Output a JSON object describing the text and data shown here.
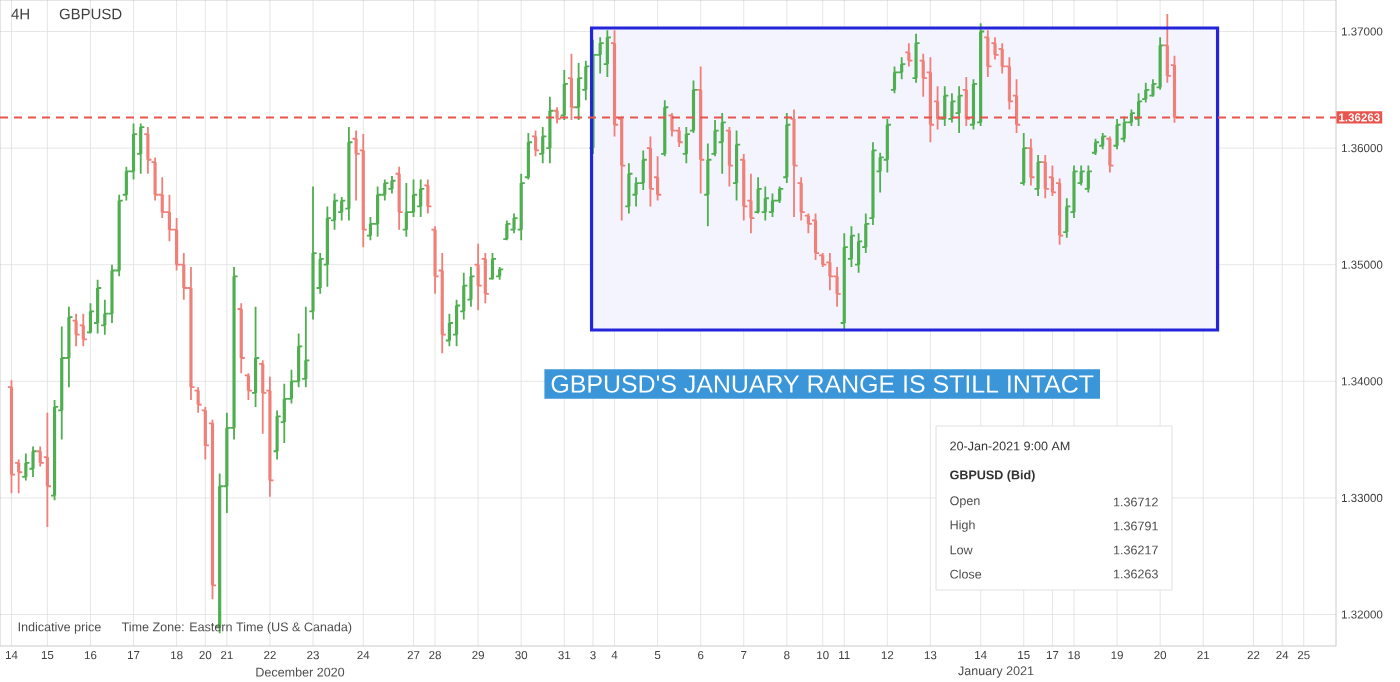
{
  "chart_data": {
    "type": "candlestick",
    "title": "GBPUSD",
    "subtitle": "4H",
    "categories": [
      "14",
      null,
      null,
      null,
      null,
      "15",
      null,
      null,
      null,
      null,
      null,
      "16",
      null,
      null,
      null,
      null,
      null,
      "17",
      null,
      null,
      null,
      null,
      null,
      "18",
      null,
      null,
      null,
      "20",
      null,
      null,
      "21",
      null,
      null,
      null,
      null,
      null,
      "22",
      null,
      null,
      null,
      null,
      null,
      "23",
      null,
      null,
      null,
      null,
      null,
      null,
      "24",
      null,
      null,
      null,
      null,
      null,
      null,
      "27",
      null,
      null,
      "28",
      null,
      null,
      null,
      null,
      null,
      "29",
      null,
      null,
      null,
      null,
      null,
      "30",
      null,
      null,
      null,
      null,
      null,
      "31",
      null,
      null,
      null,
      "3",
      null,
      null,
      "4",
      null,
      null,
      null,
      null,
      null,
      "5",
      null,
      null,
      null,
      null,
      null,
      "6",
      null,
      null,
      null,
      null,
      null,
      "7",
      null,
      null,
      null,
      null,
      null,
      "8",
      null,
      null,
      null,
      null,
      "10",
      null,
      null,
      "11",
      null,
      null,
      null,
      null,
      null,
      "12",
      null,
      null,
      null,
      null,
      null,
      "13",
      null,
      null,
      null,
      null,
      null,
      null,
      "14",
      null,
      null,
      null,
      null,
      null,
      "15",
      null,
      null,
      null,
      "17",
      null,
      null,
      "18",
      null,
      null,
      null,
      null,
      null,
      "19",
      null,
      null,
      null,
      null,
      null,
      "20",
      null,
      null,
      null,
      null,
      null,
      "21",
      null,
      null,
      null,
      null,
      null,
      null,
      "22",
      null,
      null,
      null,
      "24",
      null,
      null,
      "25",
      null,
      null,
      null,
      null
    ],
    "ohlc": [
      [
        1.3395,
        1.3401,
        1.3304,
        1.332
      ],
      [
        1.333,
        1.3333,
        1.3304,
        1.3322
      ],
      [
        1.3318,
        1.3338,
        1.3315,
        1.333
      ],
      [
        1.3325,
        1.3344,
        1.3318,
        1.334
      ],
      [
        1.334,
        1.3344,
        1.3327,
        1.333
      ],
      [
        1.3335,
        1.3373,
        1.3275,
        1.331
      ],
      [
        1.3302,
        1.3384,
        1.3298,
        1.3378
      ],
      [
        1.3375,
        1.3447,
        1.335,
        1.342
      ],
      [
        1.342,
        1.3464,
        1.3395,
        1.3455
      ],
      [
        1.3452,
        1.3458,
        1.343,
        1.344
      ],
      [
        1.3448,
        1.3458,
        1.343,
        1.3436
      ],
      [
        1.3442,
        1.3467,
        1.3441,
        1.346
      ],
      [
        1.345,
        1.3487,
        1.3441,
        1.348
      ],
      [
        1.3448,
        1.347,
        1.344,
        1.3458
      ],
      [
        1.3458,
        1.35,
        1.345,
        1.3495
      ],
      [
        1.3495,
        1.356,
        1.349,
        1.3555
      ],
      [
        1.356,
        1.3584,
        1.3555,
        1.358
      ],
      [
        1.358,
        1.3621,
        1.3573,
        1.3612
      ],
      [
        1.3595,
        1.3621,
        1.3578,
        1.3618
      ],
      [
        1.3612,
        1.3618,
        1.3578,
        1.359
      ],
      [
        1.3588,
        1.3592,
        1.3555,
        1.356
      ],
      [
        1.356,
        1.3575,
        1.354,
        1.3545
      ],
      [
        1.3545,
        1.356,
        1.352,
        1.353
      ],
      [
        1.353,
        1.354,
        1.3495,
        1.35
      ],
      [
        1.35,
        1.351,
        1.347,
        1.348
      ],
      [
        1.348,
        1.3498,
        1.3384,
        1.3395
      ],
      [
        1.3392,
        1.3395,
        1.3373,
        1.338
      ],
      [
        1.3375,
        1.3378,
        1.3333,
        1.3345
      ],
      [
        1.3364,
        1.3367,
        1.3213,
        1.3225
      ],
      [
        1.319,
        1.3321,
        1.3184,
        1.331
      ],
      [
        1.331,
        1.3373,
        1.3287,
        1.336
      ],
      [
        1.336,
        1.3498,
        1.335,
        1.349
      ],
      [
        1.3462,
        1.3467,
        1.3407,
        1.342
      ],
      [
        1.3405,
        1.3407,
        1.3384,
        1.3392
      ],
      [
        1.339,
        1.3464,
        1.3378,
        1.342
      ],
      [
        1.3415,
        1.3418,
        1.3355,
        1.339
      ],
      [
        1.3392,
        1.3404,
        1.3301,
        1.3315
      ],
      [
        1.334,
        1.3375,
        1.3333,
        1.337
      ],
      [
        1.3365,
        1.3398,
        1.3347,
        1.3385
      ],
      [
        1.3385,
        1.341,
        1.3381,
        1.34
      ],
      [
        1.34,
        1.3441,
        1.3395,
        1.343
      ],
      [
        1.3402,
        1.3464,
        1.3395,
        1.3418
      ],
      [
        1.346,
        1.3567,
        1.3453,
        1.351
      ],
      [
        1.348,
        1.351,
        1.3475,
        1.3505
      ],
      [
        1.35,
        1.355,
        1.3481,
        1.354
      ],
      [
        1.3538,
        1.3561,
        1.353,
        1.3555
      ],
      [
        1.3545,
        1.3558,
        1.3538,
        1.3555
      ],
      [
        1.3548,
        1.3618,
        1.3538,
        1.3605
      ],
      [
        1.3608,
        1.3615,
        1.3555,
        1.3595
      ],
      [
        1.3598,
        1.3612,
        1.3515,
        1.353
      ],
      [
        1.3525,
        1.3541,
        1.3521,
        1.3535
      ],
      [
        1.3535,
        1.3567,
        1.3524,
        1.356
      ],
      [
        1.356,
        1.3573,
        1.3555,
        1.357
      ],
      [
        1.3565,
        1.3576,
        1.3561,
        1.3572
      ],
      [
        1.3578,
        1.3584,
        1.353,
        1.3545
      ],
      [
        1.353,
        1.357,
        1.3524,
        1.3545
      ],
      [
        1.3545,
        1.3573,
        1.3541,
        1.356
      ],
      [
        1.355,
        1.3573,
        1.3541,
        1.3565
      ],
      [
        1.3568,
        1.3573,
        1.3544,
        1.355
      ],
      [
        1.353,
        1.3533,
        1.3475,
        1.349
      ],
      [
        1.3495,
        1.351,
        1.3424,
        1.344
      ],
      [
        1.3435,
        1.3458,
        1.343,
        1.345
      ],
      [
        1.344,
        1.347,
        1.343,
        1.3465
      ],
      [
        1.346,
        1.3493,
        1.3453,
        1.3482
      ],
      [
        1.347,
        1.3498,
        1.3464,
        1.349
      ],
      [
        1.35,
        1.3518,
        1.3461,
        1.3482
      ],
      [
        1.3505,
        1.351,
        1.3467,
        1.3475
      ],
      [
        1.3488,
        1.351,
        1.3487,
        1.3505
      ],
      [
        1.349,
        1.3498,
        1.3487,
        1.3496
      ],
      [
        1.3522,
        1.3538,
        1.3521,
        1.3535
      ],
      [
        1.353,
        1.3544,
        1.3527,
        1.354
      ],
      [
        1.353,
        1.3578,
        1.3521,
        1.357
      ],
      [
        1.3575,
        1.3613,
        1.3573,
        1.3605
      ],
      [
        1.361,
        1.3615,
        1.3593,
        1.3598
      ],
      [
        1.3595,
        1.3618,
        1.3587,
        1.361
      ],
      [
        1.36,
        1.3644,
        1.3587,
        1.3632
      ],
      [
        1.3632,
        1.3635,
        1.3621,
        1.3625
      ],
      [
        1.3628,
        1.3667,
        1.3624,
        1.3655
      ],
      [
        1.366,
        1.3681,
        1.3624,
        1.3635
      ],
      [
        1.3635,
        1.3673,
        1.3624,
        1.366
      ],
      [
        1.365,
        1.3675,
        1.3641,
        1.367
      ],
      [
        1.36,
        1.3693,
        1.3595,
        1.368
      ],
      [
        1.368,
        1.3695,
        1.3664,
        1.369
      ],
      [
        1.3672,
        1.3701,
        1.3661,
        1.3695
      ],
      [
        1.369,
        1.3701,
        1.361,
        1.362
      ],
      [
        1.3625,
        1.3627,
        1.3538,
        1.3585
      ],
      [
        1.355,
        1.3587,
        1.3544,
        1.3578
      ],
      [
        1.356,
        1.3575,
        1.355,
        1.357
      ],
      [
        1.357,
        1.3598,
        1.3564,
        1.359
      ],
      [
        1.36,
        1.361,
        1.355,
        1.3565
      ],
      [
        1.3575,
        1.3593,
        1.3555,
        1.356
      ],
      [
        1.3595,
        1.3641,
        1.3593,
        1.3635
      ],
      [
        1.3628,
        1.363,
        1.361,
        1.3615
      ],
      [
        1.3615,
        1.3618,
        1.3601,
        1.3605
      ],
      [
        1.3595,
        1.3618,
        1.3587,
        1.3612
      ],
      [
        1.3615,
        1.3658,
        1.3613,
        1.365
      ],
      [
        1.365,
        1.367,
        1.3561,
        1.359
      ],
      [
        1.356,
        1.3604,
        1.3533,
        1.359
      ],
      [
        1.3595,
        1.3624,
        1.3593,
        1.3615
      ],
      [
        1.3605,
        1.363,
        1.3578,
        1.3622
      ],
      [
        1.3615,
        1.3618,
        1.3567,
        1.3585
      ],
      [
        1.357,
        1.3615,
        1.3555,
        1.3603
      ],
      [
        1.359,
        1.3595,
        1.3538,
        1.355
      ],
      [
        1.3555,
        1.3578,
        1.3527,
        1.354
      ],
      [
        1.3545,
        1.3575,
        1.3544,
        1.3565
      ],
      [
        1.3545,
        1.3567,
        1.3538,
        1.3557
      ],
      [
        1.3545,
        1.3561,
        1.3541,
        1.3555
      ],
      [
        1.3555,
        1.3567,
        1.3553,
        1.3565
      ],
      [
        1.3575,
        1.363,
        1.357,
        1.362
      ],
      [
        1.3625,
        1.3633,
        1.3541,
        1.3585
      ],
      [
        1.357,
        1.3575,
        1.3538,
        1.3545
      ],
      [
        1.3542,
        1.3544,
        1.3527,
        1.3535
      ],
      [
        1.3538,
        1.3544,
        1.3504,
        1.351
      ],
      [
        1.3508,
        1.351,
        1.3498,
        1.35
      ],
      [
        1.3502,
        1.351,
        1.3478,
        1.349
      ],
      [
        1.349,
        1.3498,
        1.3464,
        1.3475
      ],
      [
        1.345,
        1.3527,
        1.3444,
        1.3515
      ],
      [
        1.3505,
        1.3533,
        1.3498,
        1.3525
      ],
      [
        1.35,
        1.3527,
        1.3493,
        1.352
      ],
      [
        1.3515,
        1.3544,
        1.351,
        1.3535
      ],
      [
        1.354,
        1.3605,
        1.3534,
        1.3598
      ],
      [
        1.358,
        1.3596,
        1.3562,
        1.3592
      ],
      [
        1.359,
        1.3625,
        1.3579,
        1.362
      ],
      [
        1.365,
        1.367,
        1.3647,
        1.3665
      ],
      [
        1.3665,
        1.3678,
        1.3659,
        1.3672
      ],
      [
        1.3682,
        1.369,
        1.367,
        1.3675
      ],
      [
        1.366,
        1.3698,
        1.3656,
        1.369
      ],
      [
        1.3675,
        1.3681,
        1.3644,
        1.366
      ],
      [
        1.3665,
        1.3678,
        1.3605,
        1.362
      ],
      [
        1.364,
        1.3653,
        1.3616,
        1.3625
      ],
      [
        1.3625,
        1.3653,
        1.3619,
        1.3645
      ],
      [
        1.3625,
        1.3647,
        1.3622,
        1.364
      ],
      [
        1.363,
        1.3653,
        1.3613,
        1.3645
      ],
      [
        1.365,
        1.3661,
        1.3619,
        1.3625
      ],
      [
        1.362,
        1.3659,
        1.3616,
        1.3655
      ],
      [
        1.3622,
        1.3707,
        1.3619,
        1.37
      ],
      [
        1.3695,
        1.3701,
        1.3661,
        1.367
      ],
      [
        1.369,
        1.3695,
        1.3676,
        1.368
      ],
      [
        1.3685,
        1.369,
        1.3664,
        1.367
      ],
      [
        1.367,
        1.3678,
        1.3633,
        1.364
      ],
      [
        1.3645,
        1.3659,
        1.3613,
        1.362
      ],
      [
        1.357,
        1.3613,
        1.3568,
        1.36
      ],
      [
        1.36,
        1.3608,
        1.3568,
        1.3575
      ],
      [
        1.3565,
        1.3594,
        1.3559,
        1.3588
      ],
      [
        1.3588,
        1.3594,
        1.3557,
        1.3565
      ],
      [
        1.3575,
        1.3585,
        1.3559,
        1.3562
      ],
      [
        1.357,
        1.3574,
        1.3517,
        1.3525
      ],
      [
        1.3528,
        1.3557,
        1.3523,
        1.355
      ],
      [
        1.3545,
        1.3585,
        1.354,
        1.358
      ],
      [
        1.357,
        1.3585,
        1.3568,
        1.358
      ],
      [
        1.3565,
        1.3585,
        1.3562,
        1.358
      ],
      [
        1.3596,
        1.3608,
        1.3594,
        1.3605
      ],
      [
        1.3602,
        1.3613,
        1.3599,
        1.361
      ],
      [
        1.3608,
        1.361,
        1.3579,
        1.3585
      ],
      [
        1.3602,
        1.3625,
        1.3599,
        1.362
      ],
      [
        1.3608,
        1.3627,
        1.3605,
        1.3622
      ],
      [
        1.3622,
        1.3633,
        1.3619,
        1.363
      ],
      [
        1.3625,
        1.3647,
        1.3619,
        1.364
      ],
      [
        1.3642,
        1.3656,
        1.3639,
        1.365
      ],
      [
        1.3645,
        1.3659,
        1.3644,
        1.3655
      ],
      [
        1.3652,
        1.3695,
        1.365,
        1.3688
      ],
      [
        1.3688,
        1.3715,
        1.3656,
        1.3662
      ],
      [
        1.36712,
        1.36791,
        1.36217,
        1.36263
      ],
      null,
      null,
      null,
      null,
      null,
      null,
      null,
      null,
      null,
      null,
      null,
      null,
      null,
      null,
      null,
      null,
      null,
      null,
      null,
      null,
      null,
      null
    ],
    "colors": [
      "#f07f78",
      "#f07f78",
      "#4fae4f",
      "#4fae4f",
      "#f07f78",
      "#f07f78",
      "#4fae4f",
      "#4fae4f",
      "#4fae4f",
      "#f07f78",
      "#f07f78",
      "#4fae4f",
      "#4fae4f",
      "#4fae4f",
      "#4fae4f",
      "#4fae4f",
      "#4fae4f",
      "#4fae4f",
      "#4fae4f",
      "#f07f78",
      "#f07f78",
      "#f07f78",
      "#f07f78",
      "#f07f78",
      "#f07f78",
      "#f07f78",
      "#f07f78",
      "#f07f78",
      "#f07f78",
      "#4fae4f",
      "#4fae4f",
      "#4fae4f",
      "#f07f78",
      "#f07f78",
      "#4fae4f",
      "#f07f78",
      "#f07f78",
      "#4fae4f",
      "#4fae4f",
      "#4fae4f",
      "#4fae4f",
      "#4fae4f",
      "#4fae4f",
      "#4fae4f",
      "#4fae4f",
      "#4fae4f",
      "#4fae4f",
      "#4fae4f",
      "#f07f78",
      "#f07f78",
      "#4fae4f",
      "#4fae4f",
      "#4fae4f",
      "#4fae4f",
      "#f07f78",
      "#4fae4f",
      "#4fae4f",
      "#4fae4f",
      "#f07f78",
      "#f07f78",
      "#f07f78",
      "#4fae4f",
      "#4fae4f",
      "#4fae4f",
      "#4fae4f",
      "#f07f78",
      "#f07f78",
      "#4fae4f",
      "#4fae4f",
      "#4fae4f",
      "#4fae4f",
      "#4fae4f",
      "#4fae4f",
      "#f07f78",
      "#4fae4f",
      "#4fae4f",
      "#f07f78",
      "#4fae4f",
      "#f07f78",
      "#4fae4f",
      "#4fae4f",
      "#4fae4f",
      "#4fae4f",
      "#4fae4f",
      "#f07f78",
      "#f07f78",
      "#4fae4f",
      "#4fae4f",
      "#4fae4f",
      "#f07f78",
      "#f07f78",
      "#4fae4f",
      "#f07f78",
      "#f07f78",
      "#4fae4f",
      "#4fae4f",
      "#f07f78",
      "#4fae4f",
      "#4fae4f",
      "#4fae4f",
      "#f07f78",
      "#4fae4f",
      "#f07f78",
      "#f07f78",
      "#4fae4f",
      "#4fae4f",
      "#4fae4f",
      "#4fae4f",
      "#4fae4f",
      "#f07f78",
      "#f07f78",
      "#f07f78",
      "#f07f78",
      "#f07f78",
      "#f07f78",
      "#f07f78",
      "#4fae4f",
      "#4fae4f",
      "#4fae4f",
      "#4fae4f",
      "#4fae4f",
      "#4fae4f",
      "#4fae4f",
      "#4fae4f",
      "#4fae4f",
      "#f07f78",
      "#4fae4f",
      "#f07f78",
      "#f07f78",
      "#f07f78",
      "#4fae4f",
      "#4fae4f",
      "#4fae4f",
      "#f07f78",
      "#4fae4f",
      "#4fae4f",
      "#f07f78",
      "#f07f78",
      "#f07f78",
      "#f07f78",
      "#f07f78",
      "#4fae4f",
      "#f07f78",
      "#4fae4f",
      "#f07f78",
      "#f07f78",
      "#f07f78",
      "#4fae4f",
      "#4fae4f",
      "#4fae4f",
      "#4fae4f",
      "#4fae4f",
      "#4fae4f",
      "#f07f78",
      "#4fae4f",
      "#4fae4f",
      "#4fae4f",
      "#4fae4f",
      "#4fae4f",
      "#4fae4f",
      "#4fae4f",
      "#f07f78",
      "#f07f78",
      null,
      null,
      null,
      null,
      null,
      null,
      null,
      null,
      null,
      null,
      null,
      null,
      null,
      null,
      null,
      null,
      null,
      null,
      null,
      null,
      null,
      null
    ],
    "ylim": [
      1.3173,
      1.3727
    ],
    "yticks": [
      {
        "value": 1.32,
        "label": "1.32000"
      },
      {
        "value": 1.33,
        "label": "1.33000"
      },
      {
        "value": 1.34,
        "label": "1.34000"
      },
      {
        "value": 1.35,
        "label": "1.35000"
      },
      {
        "value": 1.36,
        "label": "1.36000"
      },
      {
        "value": 1.37,
        "label": "1.37000"
      }
    ],
    "grid": true,
    "ref_lines": [
      {
        "axis": "y",
        "value": 1.36263,
        "label": "1.36263",
        "color": "#e8554e",
        "line_style": "dashed"
      }
    ],
    "bands": [
      {
        "axis": "y",
        "from": 1.3444,
        "to": 1.3703
      }
    ],
    "annotations": [
      "Indicative price",
      "Time Zone: Eastern Time (US & Canada)",
      "December 2020",
      "January 2021",
      "GBPUSD'S JANUARY RANGE IS STILL INTACT",
      "20-Jan-2021 9:00 AM",
      "GBPUSD (Bid)",
      "Open",
      "1.36712",
      "High",
      "1.36791",
      "Low",
      "1.36217",
      "Close",
      "1.36263"
    ]
  }
}
